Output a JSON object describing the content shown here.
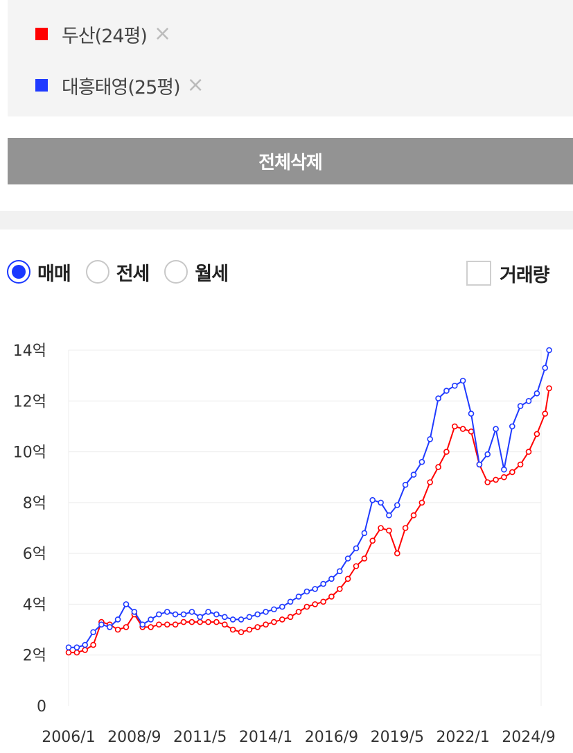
{
  "legend": {
    "items": [
      {
        "label": "두산(24평)",
        "color": "#ff0000",
        "remove_icon": "×"
      },
      {
        "label": "대흥태영(25평)",
        "color": "#1f3aff",
        "remove_icon": "×"
      }
    ]
  },
  "delete_all_label": "전체삭제",
  "trade_types": [
    {
      "label": "매매",
      "selected": true
    },
    {
      "label": "전세",
      "selected": false
    },
    {
      "label": "월세",
      "selected": false
    }
  ],
  "volume_toggle": {
    "label": "거래량",
    "checked": false
  },
  "chart_data": {
    "type": "line",
    "title": "",
    "xlabel": "",
    "ylabel": "",
    "ylim": [
      0,
      14
    ],
    "y_ticks": [
      0,
      2,
      4,
      6,
      8,
      10,
      12,
      14
    ],
    "y_tick_labels": [
      "0",
      "2억",
      "4억",
      "6억",
      "8억",
      "10억",
      "12억",
      "14억"
    ],
    "x_ticks": [
      "2006/1",
      "2008/9",
      "2011/5",
      "2014/1",
      "2016/9",
      "2019/5",
      "2022/1",
      "2024/9"
    ],
    "grid": true,
    "series": [
      {
        "name": "두산(24평)",
        "color": "#ff0000",
        "points": [
          [
            "2006/1",
            2.1
          ],
          [
            "2006/5",
            2.1
          ],
          [
            "2006/9",
            2.2
          ],
          [
            "2007/1",
            2.4
          ],
          [
            "2007/5",
            3.3
          ],
          [
            "2007/9",
            3.2
          ],
          [
            "2008/1",
            3.0
          ],
          [
            "2008/5",
            3.1
          ],
          [
            "2008/9",
            3.6
          ],
          [
            "2009/1",
            3.1
          ],
          [
            "2009/5",
            3.1
          ],
          [
            "2009/9",
            3.2
          ],
          [
            "2010/1",
            3.2
          ],
          [
            "2010/5",
            3.2
          ],
          [
            "2010/9",
            3.3
          ],
          [
            "2011/1",
            3.3
          ],
          [
            "2011/5",
            3.3
          ],
          [
            "2011/9",
            3.3
          ],
          [
            "2012/1",
            3.3
          ],
          [
            "2012/5",
            3.2
          ],
          [
            "2012/9",
            3.0
          ],
          [
            "2013/1",
            2.9
          ],
          [
            "2013/5",
            3.0
          ],
          [
            "2013/9",
            3.1
          ],
          [
            "2014/1",
            3.2
          ],
          [
            "2014/5",
            3.3
          ],
          [
            "2014/9",
            3.4
          ],
          [
            "2015/1",
            3.5
          ],
          [
            "2015/5",
            3.7
          ],
          [
            "2015/9",
            3.9
          ],
          [
            "2016/1",
            4.0
          ],
          [
            "2016/5",
            4.1
          ],
          [
            "2016/9",
            4.3
          ],
          [
            "2017/1",
            4.6
          ],
          [
            "2017/5",
            5.0
          ],
          [
            "2017/9",
            5.5
          ],
          [
            "2018/1",
            5.8
          ],
          [
            "2018/5",
            6.5
          ],
          [
            "2018/9",
            7.0
          ],
          [
            "2019/1",
            6.9
          ],
          [
            "2019/5",
            6.0
          ],
          [
            "2019/9",
            7.0
          ],
          [
            "2020/1",
            7.5
          ],
          [
            "2020/5",
            8.0
          ],
          [
            "2020/9",
            8.8
          ],
          [
            "2021/1",
            9.4
          ],
          [
            "2021/5",
            10.0
          ],
          [
            "2021/9",
            11.0
          ],
          [
            "2022/1",
            10.9
          ],
          [
            "2022/5",
            10.8
          ],
          [
            "2022/9",
            9.5
          ],
          [
            "2023/1",
            8.8
          ],
          [
            "2023/5",
            8.9
          ],
          [
            "2023/9",
            9.0
          ],
          [
            "2024/1",
            9.2
          ],
          [
            "2024/5",
            9.5
          ],
          [
            "2024/9",
            10.0
          ],
          [
            "2025/1",
            10.7
          ],
          [
            "2025/5",
            11.5
          ],
          [
            "2025/7",
            12.5
          ]
        ]
      },
      {
        "name": "대흥태영(25평)",
        "color": "#1f3aff",
        "points": [
          [
            "2006/1",
            2.3
          ],
          [
            "2006/5",
            2.3
          ],
          [
            "2006/9",
            2.4
          ],
          [
            "2007/1",
            2.9
          ],
          [
            "2007/5",
            3.2
          ],
          [
            "2007/9",
            3.1
          ],
          [
            "2008/1",
            3.4
          ],
          [
            "2008/5",
            4.0
          ],
          [
            "2008/9",
            3.7
          ],
          [
            "2009/1",
            3.2
          ],
          [
            "2009/5",
            3.4
          ],
          [
            "2009/9",
            3.6
          ],
          [
            "2010/1",
            3.7
          ],
          [
            "2010/5",
            3.6
          ],
          [
            "2010/9",
            3.6
          ],
          [
            "2011/1",
            3.7
          ],
          [
            "2011/5",
            3.5
          ],
          [
            "2011/9",
            3.7
          ],
          [
            "2012/1",
            3.6
          ],
          [
            "2012/5",
            3.5
          ],
          [
            "2012/9",
            3.4
          ],
          [
            "2013/1",
            3.4
          ],
          [
            "2013/5",
            3.5
          ],
          [
            "2013/9",
            3.6
          ],
          [
            "2014/1",
            3.7
          ],
          [
            "2014/5",
            3.8
          ],
          [
            "2014/9",
            3.9
          ],
          [
            "2015/1",
            4.1
          ],
          [
            "2015/5",
            4.3
          ],
          [
            "2015/9",
            4.5
          ],
          [
            "2016/1",
            4.6
          ],
          [
            "2016/5",
            4.8
          ],
          [
            "2016/9",
            5.0
          ],
          [
            "2017/1",
            5.3
          ],
          [
            "2017/5",
            5.8
          ],
          [
            "2017/9",
            6.2
          ],
          [
            "2018/1",
            6.8
          ],
          [
            "2018/5",
            8.1
          ],
          [
            "2018/9",
            8.0
          ],
          [
            "2019/1",
            7.5
          ],
          [
            "2019/5",
            7.9
          ],
          [
            "2019/9",
            8.7
          ],
          [
            "2020/1",
            9.1
          ],
          [
            "2020/5",
            9.6
          ],
          [
            "2020/9",
            10.5
          ],
          [
            "2021/1",
            12.1
          ],
          [
            "2021/5",
            12.4
          ],
          [
            "2021/9",
            12.6
          ],
          [
            "2022/1",
            12.8
          ],
          [
            "2022/5",
            11.5
          ],
          [
            "2022/9",
            9.5
          ],
          [
            "2023/1",
            9.9
          ],
          [
            "2023/5",
            10.9
          ],
          [
            "2023/9",
            9.3
          ],
          [
            "2024/1",
            11.0
          ],
          [
            "2024/5",
            11.8
          ],
          [
            "2024/9",
            12.0
          ],
          [
            "2025/1",
            12.3
          ],
          [
            "2025/5",
            13.3
          ],
          [
            "2025/7",
            14.0
          ]
        ]
      }
    ]
  }
}
